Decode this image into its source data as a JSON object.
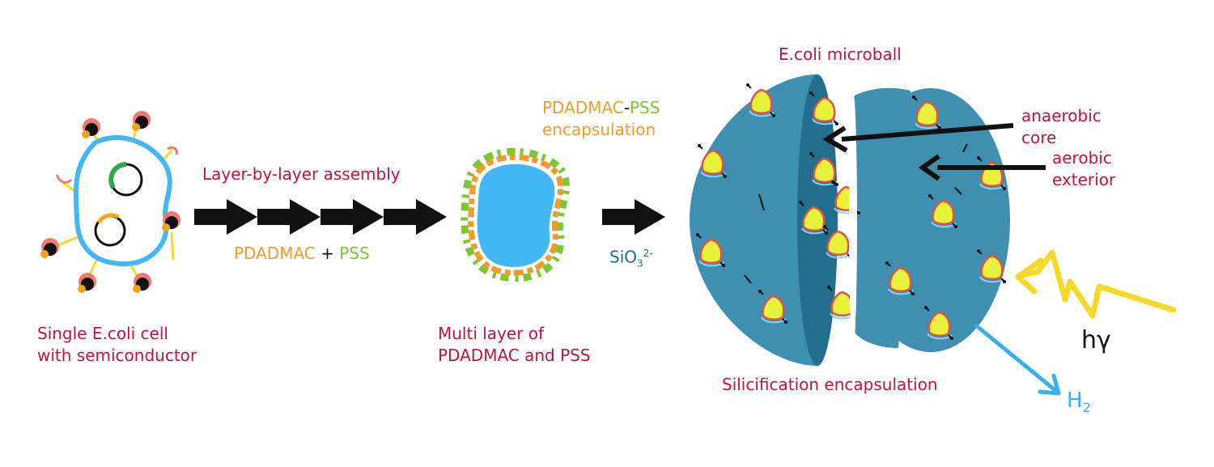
{
  "colors": {
    "label_red": "#c0143c",
    "pdadmac_orange": "#f39a2c",
    "pss_green": "#7cc734",
    "cell_blue": "#43b6f5",
    "microball_teal": "#3f8fb0",
    "light_yellow": "#f5d928",
    "h2_blue": "#39b0ea"
  },
  "labels": {
    "single_cell_line1": "Single E.coli cell",
    "single_cell_line2": "with semiconductor",
    "lbl_assembly": "Layer-by-layer assembly",
    "pdadmac": "PDADMAC",
    "plus": "+",
    "pss": "PSS",
    "encap_pdadmac": "PDADMAC",
    "encap_dash": "-",
    "encap_pss": "PSS",
    "encap_line2": "encapsulation",
    "multilayer_line1": "Multi layer of",
    "multilayer_line2": "PDADMAC and PSS",
    "silicate_base": "SiO",
    "silicate_sub": "3",
    "silicate_sup": "2-",
    "microball_title": "E.coli microball",
    "anaerobic_line1": "anaerobic",
    "anaerobic_line2": "core",
    "aerobic_line1": "aerobic",
    "aerobic_line2": "exterior",
    "silicification": "Silicification encapsulation",
    "hv": "hγ",
    "h2_base": "H",
    "h2_sub": "2"
  },
  "icons": [
    "single-ecoli-cell-icon",
    "plasmid-icon",
    "semiconductor-particle-icon",
    "process-arrow-icon",
    "encapsulated-cell-icon",
    "microball-icon",
    "light-zigzag-icon",
    "h2-release-arrow-icon"
  ]
}
